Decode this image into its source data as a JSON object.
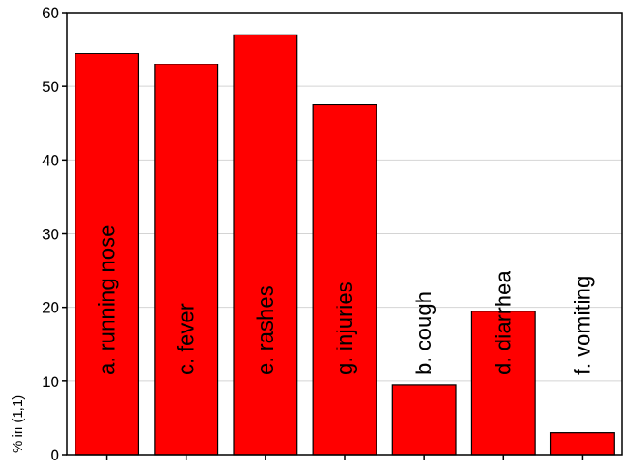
{
  "chart_data": {
    "type": "bar",
    "title": "",
    "xlabel": "",
    "ylabel": "% in (1,1)",
    "ylim": [
      0,
      60
    ],
    "yticks": [
      0,
      10,
      20,
      30,
      40,
      50,
      60
    ],
    "grid": true,
    "categories": [
      "a. running nose",
      "c. fever",
      "e. rashes",
      "g. injuries",
      "b. cough",
      "d. diarrhea",
      "f. vomiting"
    ],
    "values": [
      54.5,
      53,
      57,
      47.5,
      9.5,
      19.5,
      3
    ],
    "bar_color": "#ff0000",
    "bar_edge_color": "#000000"
  }
}
